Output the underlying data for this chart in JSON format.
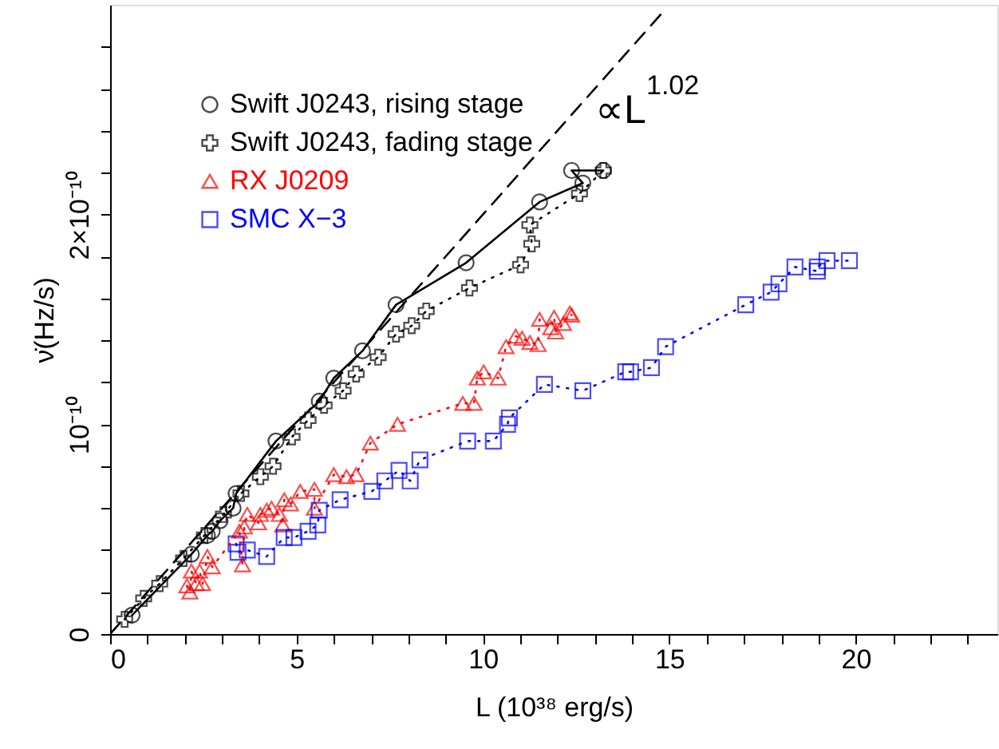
{
  "chart_data": {
    "type": "line",
    "xlabel": "L (10³⁸ erg/s)",
    "ylabel": "ν̇(Hz/s)",
    "xlim": [
      0,
      23.8
    ],
    "ylim": [
      0,
      3e-10
    ],
    "xticks": [
      0,
      {
        "value": 1,
        "label": null
      },
      {
        "value": 2,
        "label": null
      },
      {
        "value": 3,
        "label": null
      },
      {
        "value": 4,
        "label": null
      },
      5,
      {
        "value": 6,
        "label": null
      },
      {
        "value": 7,
        "label": null
      },
      {
        "value": 8,
        "label": null
      },
      {
        "value": 9,
        "label": null
      },
      10,
      {
        "value": 11,
        "label": null
      },
      {
        "value": 12,
        "label": null
      },
      {
        "value": 13,
        "label": null
      },
      {
        "value": 14,
        "label": null
      },
      15,
      {
        "value": 16,
        "label": null
      },
      {
        "value": 17,
        "label": null
      },
      {
        "value": 18,
        "label": null
      },
      {
        "value": 19,
        "label": null
      },
      20,
      {
        "value": 21,
        "label": null
      },
      {
        "value": 22,
        "label": null
      },
      {
        "value": 23,
        "label": null
      }
    ],
    "yticks": [
      0,
      {
        "value": 2e-11,
        "label": null
      },
      {
        "value": 4e-11,
        "label": null
      },
      {
        "value": 6e-11,
        "label": null
      },
      {
        "value": 8e-11,
        "label": null
      },
      {
        "value": 1e-10,
        "label": "10⁻¹⁰"
      },
      {
        "value": 1.2e-10,
        "label": null
      },
      {
        "value": 1.4e-10,
        "label": null
      },
      {
        "value": 1.6e-10,
        "label": null
      },
      {
        "value": 1.8e-10,
        "label": null
      },
      {
        "value": 2e-10,
        "label": "2×10⁻¹⁰"
      },
      {
        "value": 2.2e-10,
        "label": null
      },
      {
        "value": 2.4e-10,
        "label": null
      },
      {
        "value": 2.6e-10,
        "label": null
      },
      {
        "value": 2.8e-10,
        "label": null
      }
    ],
    "legend": "top left",
    "annotations": [
      "∝L$^{1.02}$"
    ],
    "series": [
      {
        "name": "Swift J0243, rising stage",
        "color": "#000000",
        "marker": "circle",
        "line_style": "solid",
        "x": [
          0.59,
          2.18,
          2.61,
          2.74,
          2.95,
          3.3,
          3.38,
          4.45,
          5.61,
          6.0,
          6.77,
          7.67,
          9.55,
          11.52,
          12.68,
          12.38,
          13.23
        ],
        "values": [
          9e-12,
          3.8e-11,
          4.7e-11,
          4.9e-11,
          5.4e-11,
          6e-11,
          6.7e-11,
          9.2e-11,
          1.11e-10,
          1.22e-10,
          1.35e-10,
          1.57e-10,
          1.77e-10,
          2.06e-10,
          2.15e-10,
          2.21e-10,
          2.21e-10
        ]
      },
      {
        "name": "Swift J0243, fading stage",
        "color": "#000000",
        "marker": "cross",
        "line_style": "dotted",
        "x": [
          0.39,
          0.9,
          1.33,
          1.97,
          2.53,
          3.04,
          3.51,
          4.03,
          4.37,
          4.88,
          5.31,
          5.74,
          6.25,
          6.6,
          7.19,
          7.67,
          8.09,
          8.48,
          9.64,
          11.01,
          11.31,
          11.26,
          12.59,
          13.23
        ],
        "values": [
          7e-12,
          1.7e-11,
          2.4e-11,
          3.6e-11,
          4.7e-11,
          5.7e-11,
          6.7e-11,
          7.5e-11,
          8e-11,
          9.4e-11,
          1.02e-10,
          1.09e-10,
          1.16e-10,
          1.24e-10,
          1.32e-10,
          1.43e-10,
          1.47e-10,
          1.54e-10,
          1.65e-10,
          1.76e-10,
          1.86e-10,
          1.95e-10,
          2.1e-10,
          2.21e-10
        ]
      },
      {
        "name": "RX J0209",
        "color": "#ff0000",
        "marker": "triangle",
        "line_style": "dotted",
        "x": [
          2.06,
          2.14,
          2.18,
          2.31,
          2.4,
          2.48,
          2.61,
          2.74,
          3.47,
          3.55,
          3.6,
          3.68,
          3.98,
          4.03,
          4.2,
          4.33,
          4.54,
          4.63,
          4.67,
          4.84,
          5.1,
          5.48,
          5.48,
          6.0,
          6.34,
          6.6,
          6.98,
          7.71,
          9.46,
          9.76,
          9.85,
          10.02,
          10.41,
          10.62,
          10.88,
          11.05,
          11.26,
          11.48,
          11.52,
          11.82,
          11.91,
          11.95,
          12.16,
          12.33,
          12.38
        ],
        "values": [
          2.3e-11,
          2e-11,
          3e-11,
          2.4e-11,
          3e-11,
          2.4e-11,
          3.7e-11,
          3.2e-11,
          4.9e-11,
          3.3e-11,
          5.1e-11,
          5.7e-11,
          5.3e-11,
          5.7e-11,
          5.9e-11,
          6e-11,
          5.7e-11,
          5.2e-11,
          6.4e-11,
          6.2e-11,
          6.8e-11,
          6.9e-11,
          6e-11,
          7.6e-11,
          7.5e-11,
          7.6e-11,
          9.1e-11,
          1e-10,
          1.1e-10,
          1.1e-10,
          1.22e-10,
          1.25e-10,
          1.22e-10,
          1.37e-10,
          1.42e-10,
          1.41e-10,
          1.39e-10,
          1.38e-10,
          1.5e-10,
          1.46e-10,
          1.51e-10,
          1.44e-10,
          1.48e-10,
          1.53e-10,
          1.52e-10
        ]
      },
      {
        "name": "SMC X−3",
        "color": "#0000ff",
        "marker": "square",
        "line_style": "dotted",
        "x": [
          3.38,
          3.43,
          3.68,
          4.2,
          4.67,
          4.93,
          5.31,
          5.57,
          5.61,
          6.17,
          7.02,
          7.37,
          7.75,
          8.05,
          8.31,
          9.59,
          10.28,
          10.66,
          10.71,
          11.65,
          12.68,
          13.83,
          13.96,
          14.52,
          14.9,
          17.05,
          17.73,
          17.94,
          18.37,
          18.97,
          18.97,
          19.23,
          19.83
        ],
        "values": [
          4.3e-11,
          3.9e-11,
          4e-11,
          3.7e-11,
          4.6e-11,
          4.6e-11,
          4.9e-11,
          5.2e-11,
          5.9e-11,
          6.4e-11,
          6.8e-11,
          7.3e-11,
          7.8e-11,
          7.3e-11,
          8.3e-11,
          9.2e-11,
          9.2e-11,
          1e-10,
          1.03e-10,
          1.19e-10,
          1.16e-10,
          1.25e-10,
          1.25e-10,
          1.27e-10,
          1.37e-10,
          1.57e-10,
          1.63e-10,
          1.67e-10,
          1.75e-10,
          1.73e-10,
          1.75e-10,
          1.78e-10,
          1.78e-10
        ]
      },
      {
        "color": "#000000",
        "marker": "none",
        "line_style": "dashed",
        "x": [
          0,
          7.4,
          14.8
        ],
        "values": [
          0,
          1.48e-10,
          2.96e-10
        ]
      }
    ]
  }
}
